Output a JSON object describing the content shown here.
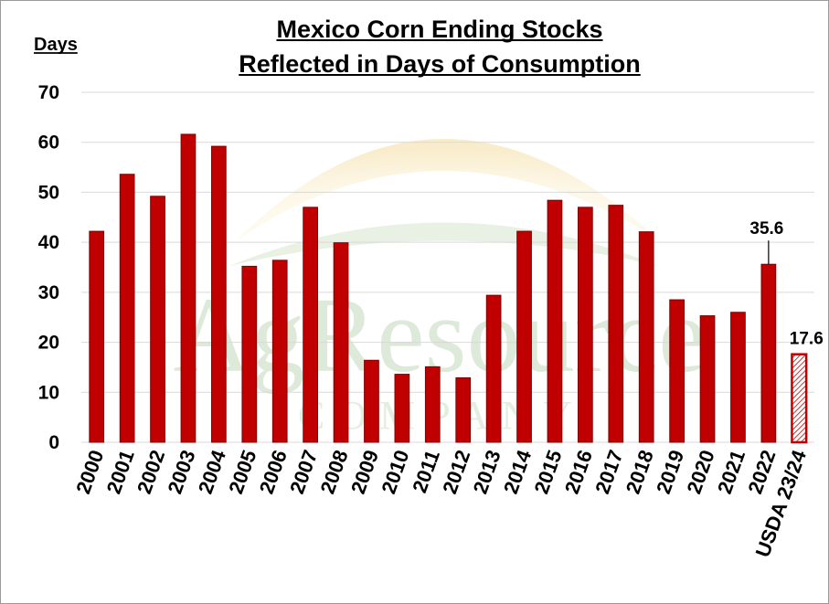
{
  "chart_data": {
    "type": "bar",
    "title_lines": [
      "Mexico Corn Ending Stocks",
      "Reflected in Days of Consumption"
    ],
    "ylabel": "Days",
    "xlabel": "",
    "ylim": [
      0,
      70
    ],
    "yticks": [
      0,
      10,
      20,
      30,
      40,
      50,
      60,
      70
    ],
    "grid": true,
    "categories": [
      "2000",
      "2001",
      "2002",
      "2003",
      "2004",
      "2005",
      "2006",
      "2007",
      "2008",
      "2009",
      "2010",
      "2011",
      "2012",
      "2013",
      "2014",
      "2015",
      "2016",
      "2017",
      "2018",
      "2019",
      "2020",
      "2021",
      "2022",
      "USDA 23/24"
    ],
    "values": [
      42.2,
      53.6,
      49.2,
      61.6,
      59.2,
      35.2,
      36.4,
      47.0,
      39.9,
      16.4,
      13.6,
      15.1,
      12.9,
      29.4,
      42.2,
      48.4,
      47.0,
      47.4,
      42.1,
      28.5,
      25.3,
      26.0,
      35.6,
      17.6
    ],
    "data_labels": [
      {
        "index": 22,
        "text": "35.6"
      },
      {
        "index": 23,
        "text": "17.6"
      }
    ],
    "colors": {
      "bar_fill": "#c00000",
      "bar_edge": "#7f0000",
      "projected_hatch": "#c00000",
      "grid": "#d9d9d9",
      "watermark_sun": "#f6e6b8",
      "watermark_arc": "#d9e8d2",
      "watermark_text": "#c7dcc0"
    },
    "watermark": {
      "logo_text": "AgResource",
      "logo_subtext": "COMPANY"
    }
  }
}
